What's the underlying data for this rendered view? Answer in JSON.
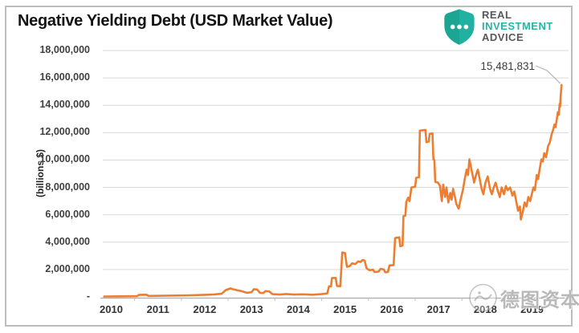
{
  "header": {
    "title": "Negative Yielding Debt (USD Market Value)"
  },
  "logo": {
    "line1": "REAL",
    "line2": "INVESTMENT",
    "line3": "ADVICE",
    "shield_color": "#21b1a0",
    "accent_color": "#28b4a4",
    "text_color": "#58595d"
  },
  "watermark": {
    "text": "德图资本"
  },
  "chart_data": {
    "type": "line",
    "title": "Negative Yielding Debt (USD Market Value)",
    "xlabel": "",
    "ylabel": "(billions $)",
    "series_color": "#ED7D31",
    "grid_color": "#d9d9d9",
    "axis_color": "#ababab",
    "grid": true,
    "legend_position": "none",
    "ylim": [
      0,
      18000000
    ],
    "y_tick_step": 2000000,
    "y_tick_labels": [
      "18,000,000",
      "16,000,000",
      "14,000,000",
      "12,000,000",
      "10,000,000",
      "8,000,000",
      "6,000,000",
      "4,000,000",
      "2,000,000",
      "-"
    ],
    "x_ticks": [
      2010,
      2011,
      2012,
      2013,
      2014,
      2015,
      2016,
      2017,
      2018,
      2019
    ],
    "xlim": [
      2009.82,
      2019.78
    ],
    "annotation": {
      "label": "15,481,831",
      "value": 15481831,
      "year": 2019.63
    },
    "series": [
      {
        "name": "Negative Yielding Debt (USD Market Value)",
        "points": [
          [
            2009.85,
            30000
          ],
          [
            2010.2,
            40000
          ],
          [
            2010.55,
            50000
          ],
          [
            2010.6,
            150000
          ],
          [
            2010.75,
            160000
          ],
          [
            2010.8,
            70000
          ],
          [
            2011.1,
            80000
          ],
          [
            2011.4,
            100000
          ],
          [
            2011.7,
            120000
          ],
          [
            2012.0,
            150000
          ],
          [
            2012.2,
            180000
          ],
          [
            2012.36,
            230000
          ],
          [
            2012.45,
            500000
          ],
          [
            2012.55,
            620000
          ],
          [
            2012.6,
            560000
          ],
          [
            2012.7,
            480000
          ],
          [
            2012.78,
            430000
          ],
          [
            2012.9,
            300000
          ],
          [
            2013.0,
            340000
          ],
          [
            2013.05,
            560000
          ],
          [
            2013.12,
            540000
          ],
          [
            2013.18,
            300000
          ],
          [
            2013.25,
            280000
          ],
          [
            2013.3,
            420000
          ],
          [
            2013.38,
            400000
          ],
          [
            2013.45,
            200000
          ],
          [
            2013.6,
            170000
          ],
          [
            2013.75,
            210000
          ],
          [
            2013.9,
            170000
          ],
          [
            2014.1,
            190000
          ],
          [
            2014.3,
            160000
          ],
          [
            2014.5,
            200000
          ],
          [
            2014.62,
            250000
          ],
          [
            2014.66,
            780000
          ],
          [
            2014.7,
            760000
          ],
          [
            2014.72,
            1370000
          ],
          [
            2014.8,
            1390000
          ],
          [
            2014.83,
            800000
          ],
          [
            2014.9,
            780000
          ],
          [
            2014.94,
            3250000
          ],
          [
            2015.0,
            3200000
          ],
          [
            2015.04,
            2200000
          ],
          [
            2015.1,
            2250000
          ],
          [
            2015.15,
            2450000
          ],
          [
            2015.22,
            2400000
          ],
          [
            2015.28,
            2600000
          ],
          [
            2015.33,
            2550000
          ],
          [
            2015.38,
            2700000
          ],
          [
            2015.42,
            2650000
          ],
          [
            2015.46,
            2100000
          ],
          [
            2015.52,
            1950000
          ],
          [
            2015.6,
            1980000
          ],
          [
            2015.63,
            1820000
          ],
          [
            2015.72,
            1850000
          ],
          [
            2015.76,
            2050000
          ],
          [
            2015.83,
            2000000
          ],
          [
            2015.86,
            1800000
          ],
          [
            2015.92,
            1830000
          ],
          [
            2015.95,
            2300000
          ],
          [
            2016.04,
            2330000
          ],
          [
            2016.07,
            4300000
          ],
          [
            2016.16,
            4350000
          ],
          [
            2016.18,
            3700000
          ],
          [
            2016.23,
            3750000
          ],
          [
            2016.25,
            5900000
          ],
          [
            2016.29,
            5950000
          ],
          [
            2016.31,
            6950000
          ],
          [
            2016.35,
            7250000
          ],
          [
            2016.38,
            7000000
          ],
          [
            2016.42,
            8000000
          ],
          [
            2016.5,
            8050000
          ],
          [
            2016.52,
            8700000
          ],
          [
            2016.58,
            8750000
          ],
          [
            2016.6,
            12150000
          ],
          [
            2016.72,
            12200000
          ],
          [
            2016.74,
            11300000
          ],
          [
            2016.79,
            11350000
          ],
          [
            2016.81,
            11900000
          ],
          [
            2016.87,
            11950000
          ],
          [
            2016.89,
            10050000
          ],
          [
            2016.91,
            10000000
          ],
          [
            2016.93,
            8400000
          ],
          [
            2016.99,
            8350000
          ],
          [
            2017.03,
            8100000
          ],
          [
            2017.07,
            7000000
          ],
          [
            2017.1,
            8200000
          ],
          [
            2017.14,
            7300000
          ],
          [
            2017.17,
            8000000
          ],
          [
            2017.21,
            6900000
          ],
          [
            2017.25,
            7600000
          ],
          [
            2017.28,
            7100000
          ],
          [
            2017.31,
            7900000
          ],
          [
            2017.35,
            7300000
          ],
          [
            2017.38,
            6800000
          ],
          [
            2017.43,
            6450000
          ],
          [
            2017.47,
            7100000
          ],
          [
            2017.52,
            7800000
          ],
          [
            2017.56,
            8600000
          ],
          [
            2017.6,
            9300000
          ],
          [
            2017.63,
            8900000
          ],
          [
            2017.66,
            10050000
          ],
          [
            2017.71,
            9200000
          ],
          [
            2017.76,
            8350000
          ],
          [
            2017.8,
            8900000
          ],
          [
            2017.84,
            9300000
          ],
          [
            2017.88,
            8600000
          ],
          [
            2017.92,
            7900000
          ],
          [
            2017.96,
            7500000
          ],
          [
            2018.0,
            8300000
          ],
          [
            2018.05,
            8800000
          ],
          [
            2018.1,
            7900000
          ],
          [
            2018.14,
            7500000
          ],
          [
            2018.18,
            8000000
          ],
          [
            2018.22,
            8350000
          ],
          [
            2018.27,
            7700000
          ],
          [
            2018.31,
            7300000
          ],
          [
            2018.35,
            8000000
          ],
          [
            2018.4,
            7500000
          ],
          [
            2018.44,
            8100000
          ],
          [
            2018.48,
            7800000
          ],
          [
            2018.53,
            8000000
          ],
          [
            2018.58,
            7400000
          ],
          [
            2018.62,
            7700000
          ],
          [
            2018.66,
            7000000
          ],
          [
            2018.7,
            6300000
          ],
          [
            2018.74,
            6600000
          ],
          [
            2018.76,
            5650000
          ],
          [
            2018.8,
            6200000
          ],
          [
            2018.84,
            6900000
          ],
          [
            2018.88,
            6600000
          ],
          [
            2018.92,
            7300000
          ],
          [
            2018.96,
            7000000
          ],
          [
            2019.0,
            7600000
          ],
          [
            2019.03,
            8000000
          ],
          [
            2019.06,
            7800000
          ],
          [
            2019.1,
            8900000
          ],
          [
            2019.13,
            8600000
          ],
          [
            2019.16,
            9300000
          ],
          [
            2019.2,
            10050000
          ],
          [
            2019.23,
            9900000
          ],
          [
            2019.26,
            10500000
          ],
          [
            2019.3,
            10200000
          ],
          [
            2019.34,
            11000000
          ],
          [
            2019.38,
            11300000
          ],
          [
            2019.42,
            11900000
          ],
          [
            2019.45,
            12200000
          ],
          [
            2019.48,
            12600000
          ],
          [
            2019.5,
            12400000
          ],
          [
            2019.53,
            13000000
          ],
          [
            2019.55,
            13500000
          ],
          [
            2019.57,
            13300000
          ],
          [
            2019.59,
            14100000
          ],
          [
            2019.6,
            13900000
          ],
          [
            2019.61,
            14600000
          ],
          [
            2019.63,
            15481831
          ]
        ]
      }
    ]
  }
}
